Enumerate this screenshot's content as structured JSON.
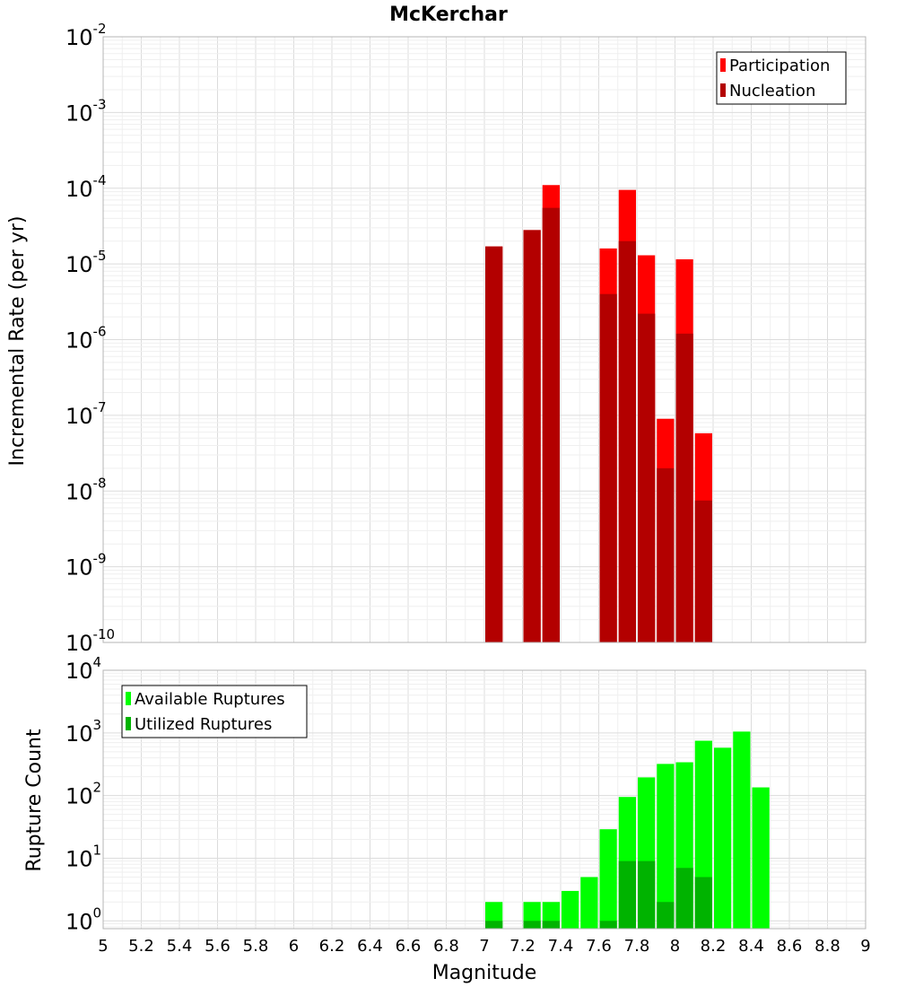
{
  "chart_data": [
    {
      "type": "bar",
      "title": "McKerchar",
      "xlabel": "",
      "ylabel": "Incremental Rate (per yr)",
      "yscale": "log",
      "ylim": [
        1e-10,
        0.01
      ],
      "xlim": [
        5,
        9
      ],
      "bin_width": 0.1,
      "x": [
        7.05,
        7.25,
        7.35,
        7.65,
        7.75,
        7.85,
        7.95,
        8.05,
        8.15
      ],
      "series": [
        {
          "name": "Participation",
          "color": "#ff0000",
          "values": [
            1.7e-05,
            2.8e-05,
            0.00011,
            1.6e-05,
            9.5e-05,
            1.3e-05,
            9e-08,
            1.15e-05,
            5.8e-08
          ]
        },
        {
          "name": "Nucleation",
          "color": "#b30000",
          "values": [
            1.7e-05,
            2.8e-05,
            5.5e-05,
            4e-06,
            2e-05,
            2.2e-06,
            2e-08,
            1.2e-06,
            7.5e-09
          ]
        }
      ],
      "legend_position": "top-right",
      "yticks": [
        {
          "base": "10",
          "exp": "-2"
        },
        {
          "base": "10",
          "exp": "-3"
        },
        {
          "base": "10",
          "exp": "-4"
        },
        {
          "base": "10",
          "exp": "-5"
        },
        {
          "base": "10",
          "exp": "-6"
        },
        {
          "base": "10",
          "exp": "-7"
        },
        {
          "base": "10",
          "exp": "-8"
        },
        {
          "base": "10",
          "exp": "-9"
        },
        {
          "base": "10",
          "exp": "-10"
        }
      ]
    },
    {
      "type": "bar",
      "title": "",
      "xlabel": "Magnitude",
      "ylabel": "Rupture Count",
      "yscale": "log",
      "ylim": [
        0.75,
        10000
      ],
      "xlim": [
        5,
        9
      ],
      "bin_width": 0.1,
      "x": [
        7.05,
        7.25,
        7.35,
        7.45,
        7.55,
        7.65,
        7.75,
        7.85,
        7.95,
        8.05,
        8.15,
        8.25,
        8.35,
        8.45
      ],
      "series": [
        {
          "name": "Available Ruptures",
          "color": "#00ff00",
          "values": [
            2,
            2,
            2,
            3,
            5,
            29,
            95,
            195,
            320,
            340,
            750,
            580,
            1050,
            135
          ]
        },
        {
          "name": "Utilized Ruptures",
          "color": "#00b300",
          "values": [
            1,
            1,
            1,
            0,
            0,
            1,
            9,
            9,
            2,
            7,
            5,
            0,
            0,
            0
          ]
        }
      ],
      "legend_position": "top-left",
      "xticks": [
        "5",
        "5.2",
        "5.4",
        "5.6",
        "5.8",
        "6",
        "6.2",
        "6.4",
        "6.6",
        "6.8",
        "7",
        "7.2",
        "7.4",
        "7.6",
        "7.8",
        "8",
        "8.2",
        "8.4",
        "8.6",
        "8.8",
        "9"
      ],
      "yticks": [
        {
          "base": "10",
          "exp": "4"
        },
        {
          "base": "10",
          "exp": "3"
        },
        {
          "base": "10",
          "exp": "2"
        },
        {
          "base": "10",
          "exp": "1"
        },
        {
          "base": "10",
          "exp": "0"
        }
      ]
    }
  ]
}
